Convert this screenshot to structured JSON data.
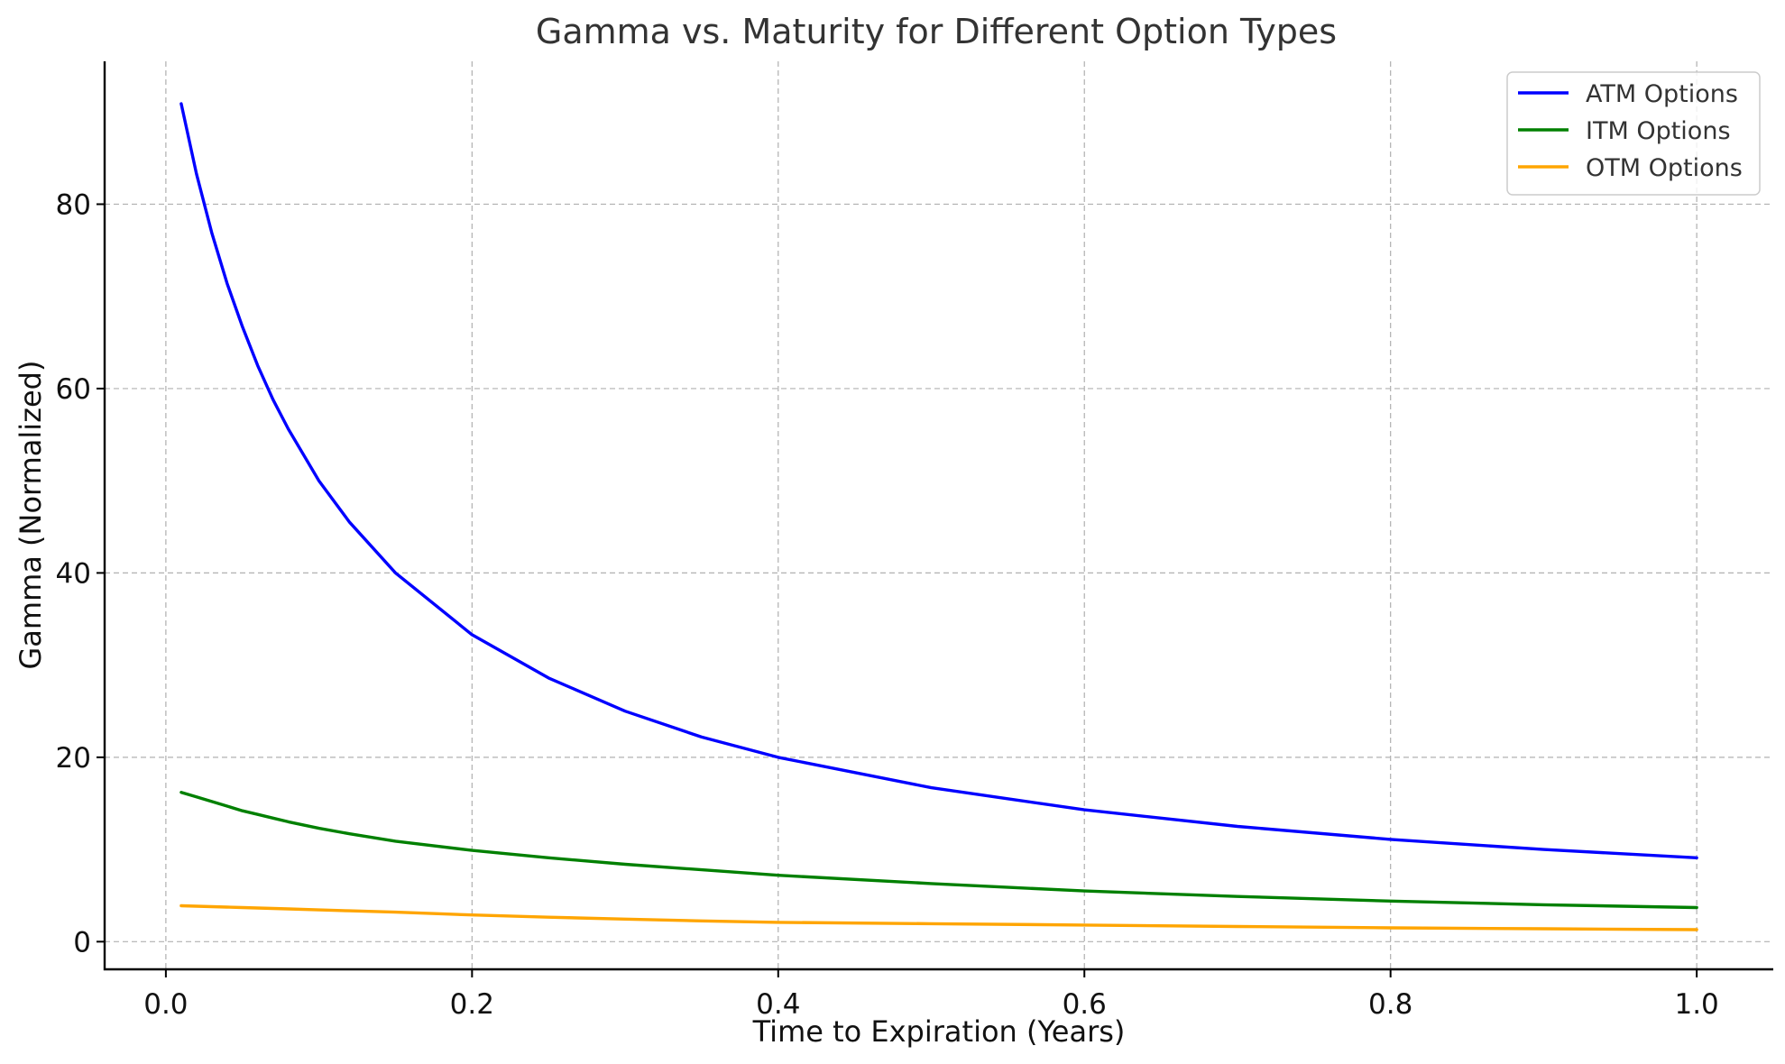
{
  "chart_data": {
    "type": "line",
    "title": "Gamma vs. Maturity for Different Option Types",
    "xlabel": "Time to Expiration (Years)",
    "ylabel": "Gamma (Normalized)",
    "xlim": [
      -0.04,
      1.05
    ],
    "ylim": [
      -3,
      95.5
    ],
    "xticks": [
      0.0,
      0.2,
      0.4,
      0.6,
      0.8,
      1.0
    ],
    "xtick_labels": [
      "0.0",
      "0.2",
      "0.4",
      "0.6",
      "0.8",
      "1.0"
    ],
    "yticks": [
      0,
      20,
      40,
      60,
      80
    ],
    "ytick_labels": [
      "0",
      "20",
      "40",
      "60",
      "80"
    ],
    "grid": true,
    "legend_position": "top-right",
    "x": [
      0.01,
      0.02,
      0.03,
      0.04,
      0.05,
      0.06,
      0.07,
      0.08,
      0.1,
      0.12,
      0.15,
      0.2,
      0.25,
      0.3,
      0.35,
      0.4,
      0.5,
      0.6,
      0.7,
      0.8,
      0.9,
      1.0
    ],
    "series": [
      {
        "name": "ATM Options",
        "color": "#0000ff",
        "values": [
          90.9,
          83.3,
          76.9,
          71.4,
          66.7,
          62.5,
          58.8,
          55.6,
          50.0,
          45.5,
          40.0,
          33.3,
          28.6,
          25.0,
          22.2,
          20.0,
          16.7,
          14.3,
          12.5,
          11.1,
          10.0,
          9.1
        ]
      },
      {
        "name": "ITM Options",
        "color": "#008000",
        "values": [
          16.2,
          15.7,
          15.2,
          14.7,
          14.2,
          13.8,
          13.4,
          13.0,
          12.3,
          11.7,
          10.9,
          9.9,
          9.1,
          8.4,
          7.8,
          7.2,
          6.3,
          5.5,
          4.9,
          4.4,
          4.0,
          3.7
        ]
      },
      {
        "name": "OTM Options",
        "color": "#ffa500",
        "values": [
          3.9,
          3.85,
          3.8,
          3.75,
          3.7,
          3.65,
          3.6,
          3.55,
          3.45,
          3.35,
          3.2,
          2.9,
          2.65,
          2.45,
          2.25,
          2.1,
          1.95,
          1.8,
          1.65,
          1.5,
          1.4,
          1.3
        ]
      }
    ]
  }
}
